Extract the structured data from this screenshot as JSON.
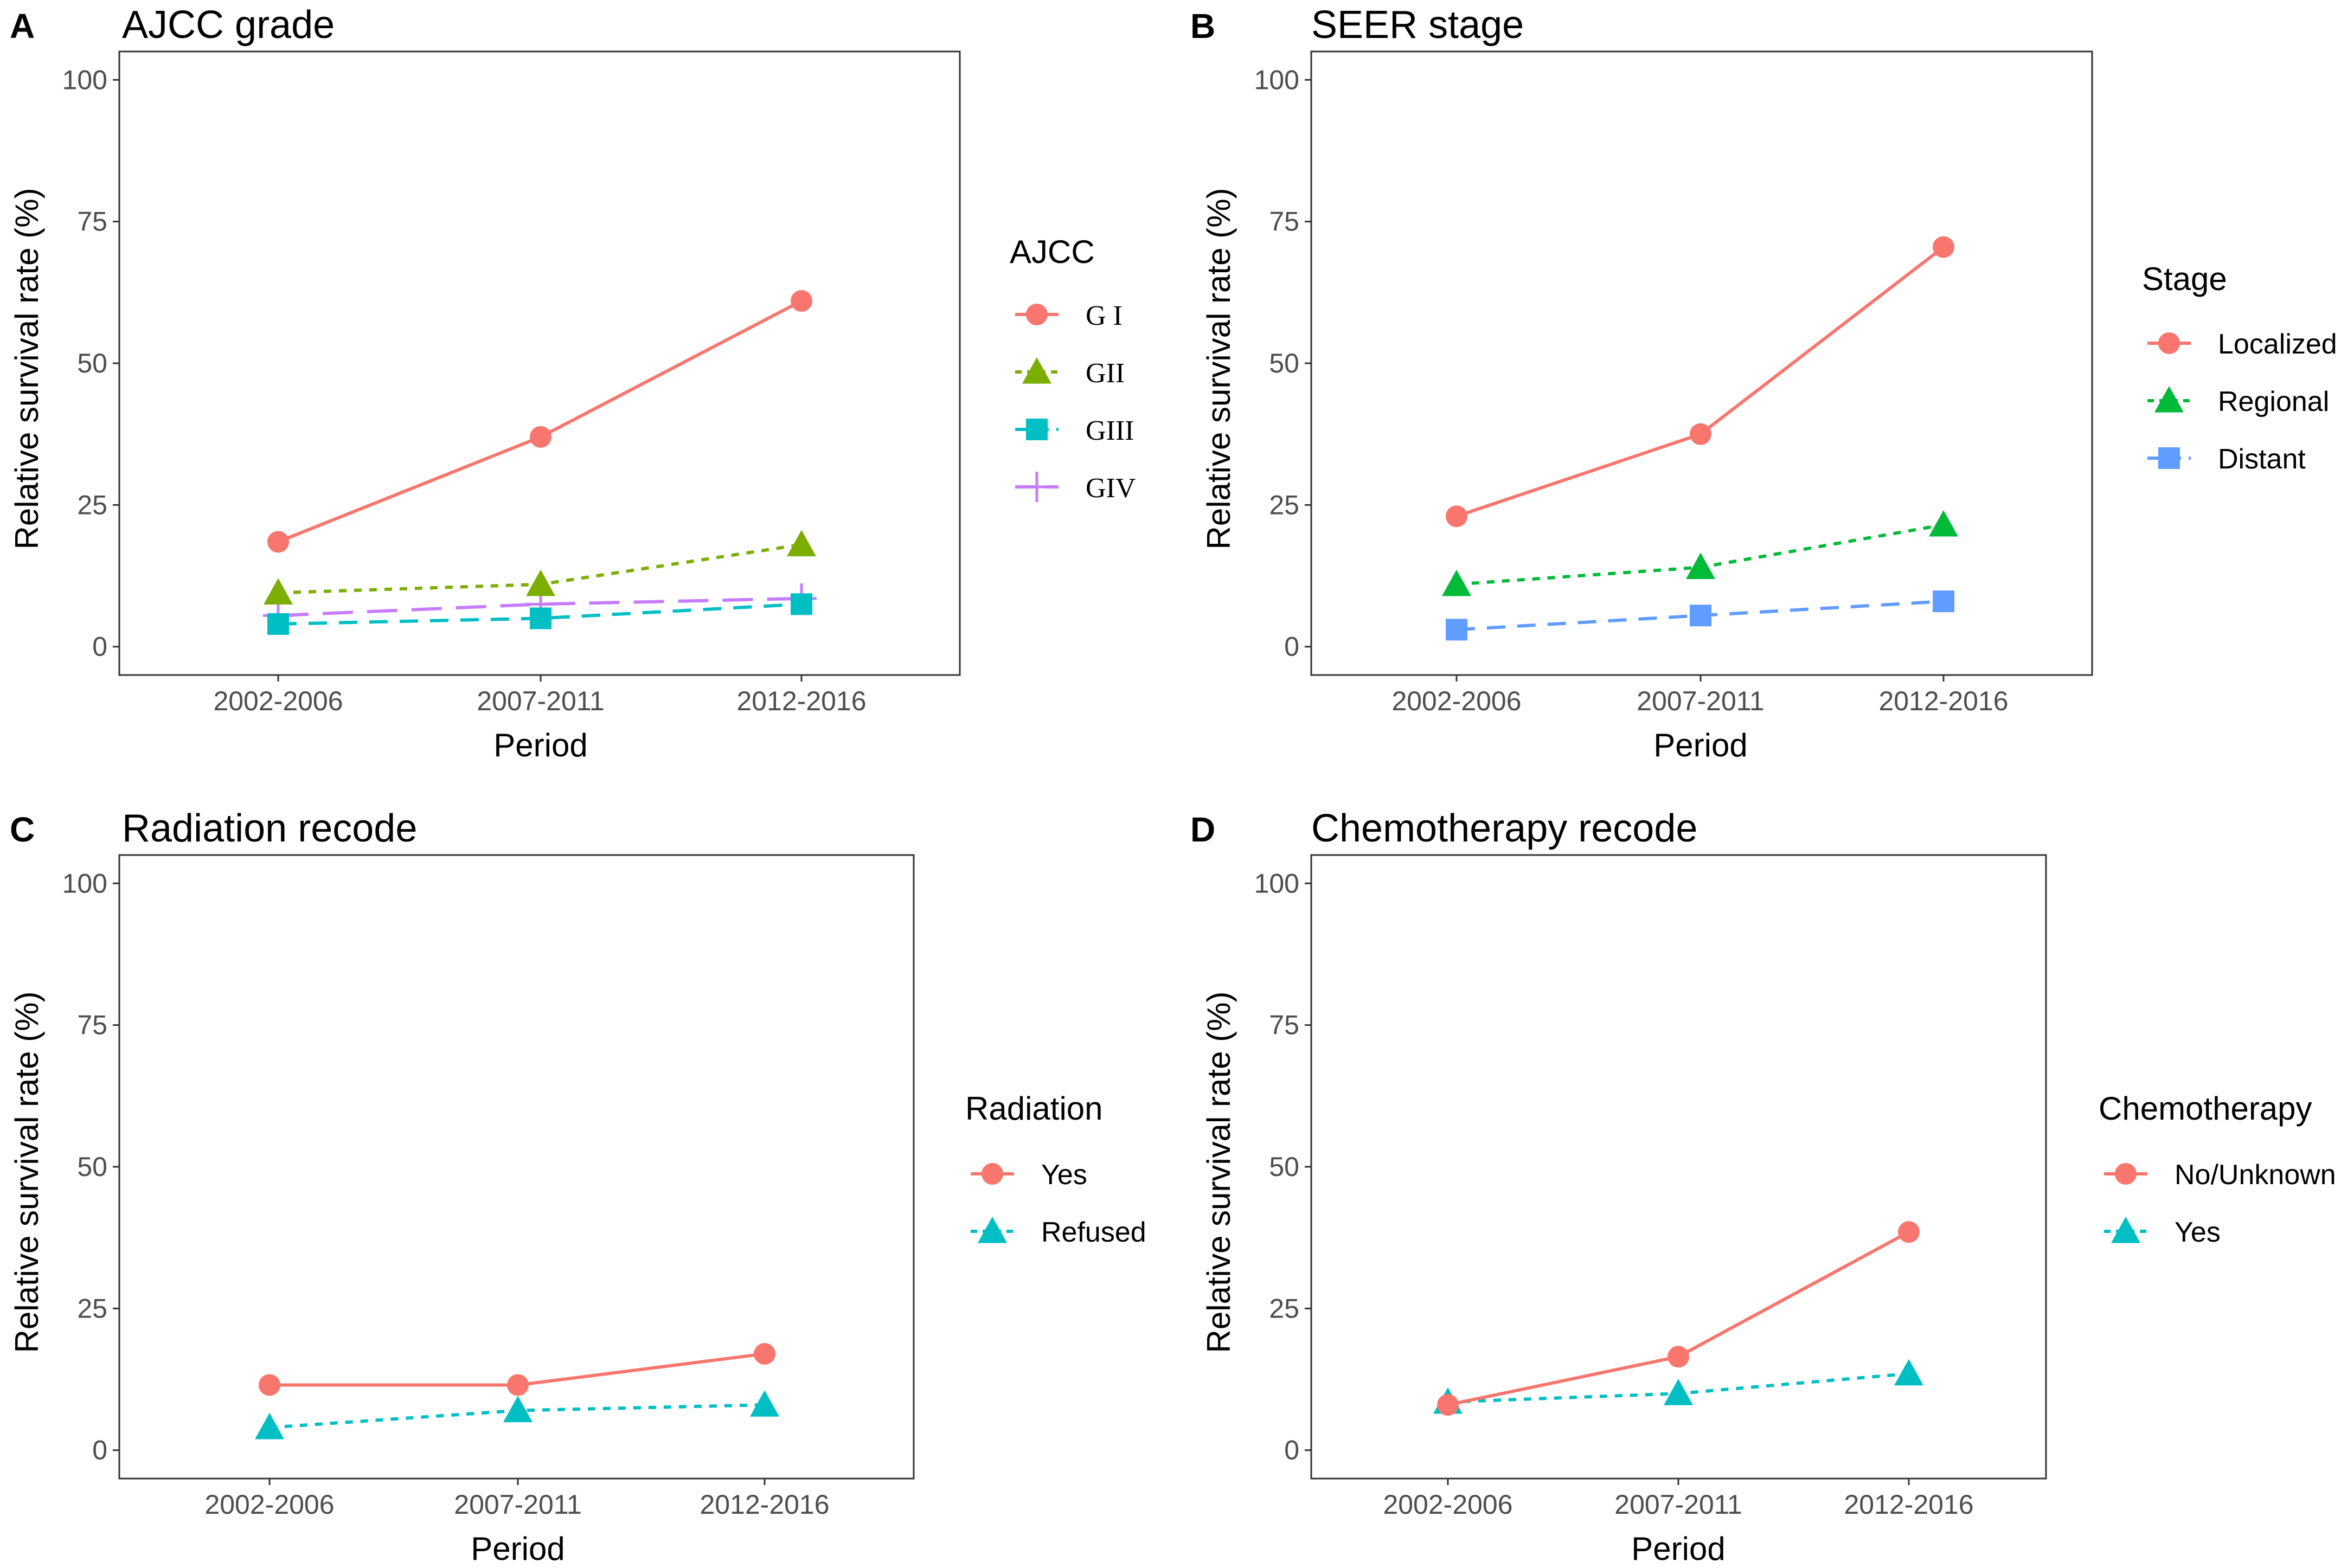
{
  "colors": {
    "red": "#F8766D",
    "olive": "#7CAE00",
    "teal": "#00BFC4",
    "purple": "#C77CFF",
    "green": "#00BA38",
    "blue": "#619CFF",
    "frame": "#333333",
    "tick_text": "#4d4d4d"
  },
  "chart_data": [
    {
      "panel": "A",
      "type": "line",
      "title": "AJCC grade",
      "xlabel": "Period",
      "ylabel": "Relative survival rate (%)",
      "categories": [
        "2002-2006",
        "2007-2011",
        "2012-2016"
      ],
      "y_ticks": [
        "0",
        "25",
        "50",
        "75",
        "100"
      ],
      "ylim": [
        -5,
        105
      ],
      "legend_title": "AJCC",
      "legend_font": "serif",
      "series": [
        {
          "name": "G I",
          "values": [
            18.5,
            37.0,
            61.0
          ],
          "color": "red",
          "line": "solid",
          "marker": "circle"
        },
        {
          "name": "GII",
          "values": [
            9.5,
            11.0,
            18.0
          ],
          "color": "olive",
          "line": "dotted",
          "marker": "triangle"
        },
        {
          "name": "GIII",
          "values": [
            4.0,
            5.0,
            7.5
          ],
          "color": "teal",
          "line": "dashed",
          "marker": "square"
        },
        {
          "name": "GIV",
          "values": [
            5.5,
            7.5,
            8.5
          ],
          "color": "purple",
          "line": "longdash",
          "marker": "plus"
        }
      ]
    },
    {
      "panel": "B",
      "type": "line",
      "title": "SEER stage",
      "xlabel": "Period",
      "ylabel": "Relative survival rate (%)",
      "categories": [
        "2002-2006",
        "2007-2011",
        "2012-2016"
      ],
      "y_ticks": [
        "0",
        "25",
        "50",
        "75",
        "100"
      ],
      "ylim": [
        -5,
        105
      ],
      "legend_title": "Stage",
      "legend_font": "sans",
      "series": [
        {
          "name": "Localized",
          "values": [
            23.0,
            37.5,
            70.5
          ],
          "color": "red",
          "line": "solid",
          "marker": "circle"
        },
        {
          "name": "Regional",
          "values": [
            11.0,
            14.0,
            21.5
          ],
          "color": "green",
          "line": "dotted",
          "marker": "triangle"
        },
        {
          "name": "Distant",
          "values": [
            3.0,
            5.5,
            8.0
          ],
          "color": "blue",
          "line": "dashed",
          "marker": "square"
        }
      ]
    },
    {
      "panel": "C",
      "type": "line",
      "title": "Radiation recode",
      "xlabel": "Period",
      "ylabel": "Relative survival rate (%)",
      "categories": [
        "2002-2006",
        "2007-2011",
        "2012-2016"
      ],
      "y_ticks": [
        "0",
        "25",
        "50",
        "75",
        "100"
      ],
      "ylim": [
        -5,
        105
      ],
      "legend_title": "Radiation",
      "legend_font": "sans",
      "series": [
        {
          "name": "Yes",
          "values": [
            11.5,
            11.5,
            17.0
          ],
          "color": "red",
          "line": "solid",
          "marker": "circle"
        },
        {
          "name": "Refused",
          "values": [
            4.0,
            7.0,
            8.0
          ],
          "color": "teal",
          "line": "dotted",
          "marker": "triangle"
        }
      ]
    },
    {
      "panel": "D",
      "type": "line",
      "title": "Chemotherapy recode",
      "xlabel": "Period",
      "ylabel": "Relative survival rate (%)",
      "categories": [
        "2002-2006",
        "2007-2011",
        "2012-2016"
      ],
      "y_ticks": [
        "0",
        "25",
        "50",
        "75",
        "100"
      ],
      "ylim": [
        -5,
        105
      ],
      "legend_title": "Chemotherapy",
      "legend_font": "sans",
      "series": [
        {
          "name": "No/Unknown",
          "values": [
            8.0,
            16.5,
            38.5
          ],
          "color": "red",
          "line": "solid",
          "marker": "circle"
        },
        {
          "name": "Yes",
          "values": [
            8.5,
            10.0,
            13.5
          ],
          "color": "teal",
          "line": "dotted",
          "marker": "triangle"
        }
      ]
    }
  ]
}
